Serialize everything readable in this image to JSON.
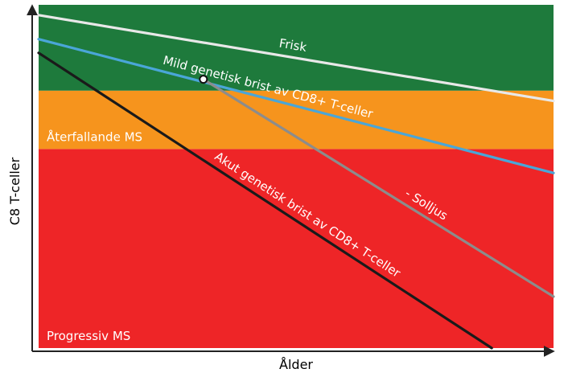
{
  "chart_data": {
    "type": "line",
    "xlabel": "Ålder",
    "ylabel": "C8 T-celler",
    "zones": [
      {
        "name": "Progressiv MS",
        "label": "Progressiv MS",
        "from": 0,
        "to": 0.58,
        "color": "#ee2527"
      },
      {
        "name": "Återfallande MS",
        "label": "Återfallande MS",
        "from": 0.58,
        "to": 0.75,
        "color": "#f6941d"
      },
      {
        "name": "",
        "label": "",
        "from": 0.75,
        "to": 1.0,
        "color": "#1e7a3c"
      }
    ],
    "series": [
      {
        "name": "Frisk",
        "color": "#e8e8e8",
        "points": [
          [
            0,
            0.97
          ],
          [
            1,
            0.72
          ]
        ],
        "label": "Frisk",
        "label_at": 0.49,
        "label_offset": -10
      },
      {
        "name": "Mild genetisk brist av CD8+ T-celler",
        "color": "#4aa6d8",
        "points": [
          [
            0,
            0.9
          ],
          [
            1,
            0.51
          ]
        ],
        "label": "Mild genetisk brist av CD8+ T-celler",
        "label_at": 0.44,
        "label_offset": -9
      },
      {
        "name": "Akut genetisk brist av CD8+ T-celler",
        "color": "#1a1a1a",
        "points": [
          [
            0,
            0.86
          ],
          [
            0.88,
            0.0
          ]
        ],
        "label": "Akut genetisk brist av CD8+ T-celler",
        "label_at": 0.58,
        "label_offset": -9
      },
      {
        "name": "- Solljus",
        "color": "#8c8c8c",
        "points": [
          [
            0.32,
            0.783
          ],
          [
            1,
            0.15
          ]
        ],
        "label": "- Solljus",
        "label_at": 0.62,
        "label_offset": -9
      }
    ],
    "branch_point": [
      0.32,
      0.783
    ]
  }
}
